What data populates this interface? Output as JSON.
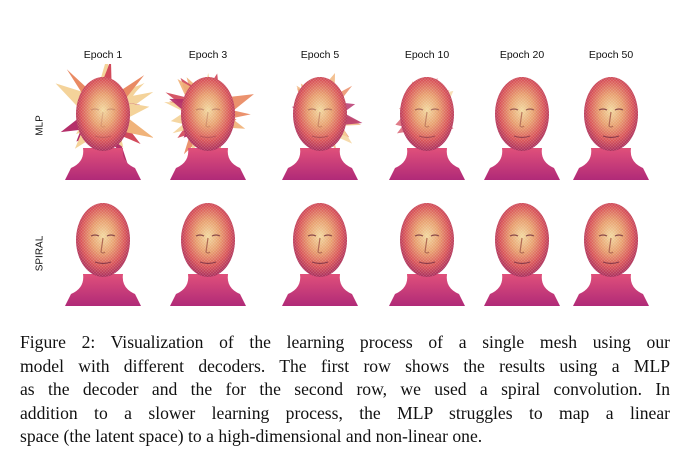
{
  "figure": {
    "columns": [
      "Epoch 1",
      "Epoch 3",
      "Epoch 5",
      "Epoch 10",
      "Epoch 20",
      "Epoch 50"
    ],
    "rows": [
      {
        "label": "MLP",
        "noise": [
          1.0,
          0.85,
          0.65,
          0.45,
          0.2,
          0.0
        ]
      },
      {
        "label": "SPIRAL",
        "noise": [
          0,
          0,
          0,
          0,
          0,
          0
        ]
      }
    ]
  },
  "caption": {
    "lines": [
      "Figure 2: Visualization of the learning process of a single mesh using our",
      "model with different decoders. The first row shows the results using a MLP",
      "as the decoder and the for the second row, we used a spiral convolution. In",
      "addition to a slower learning process, the MLP struggles to map a linear",
      "space (the latent space) to a high-dimensional and non-linear one."
    ]
  }
}
